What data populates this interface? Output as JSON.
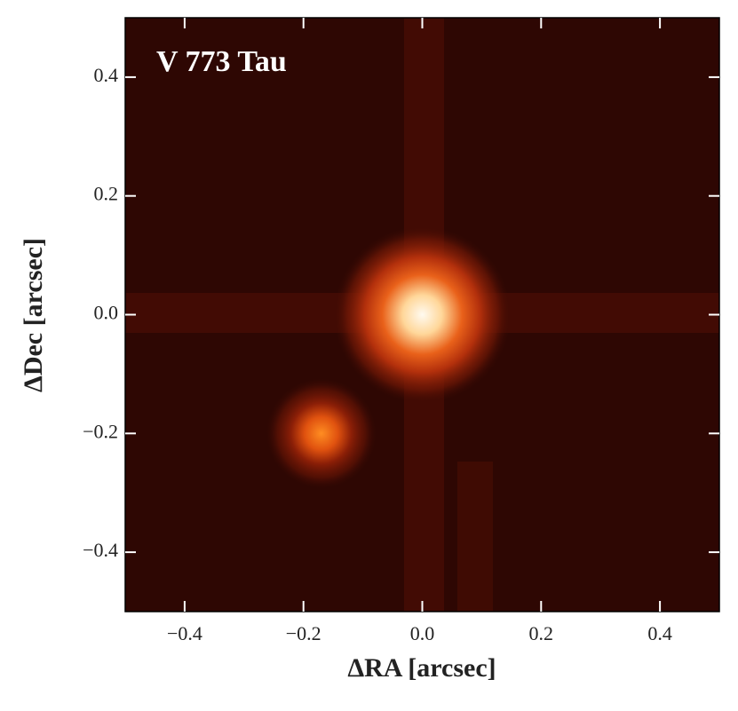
{
  "chart_data": {
    "type": "image",
    "title": "V 773 Tau",
    "xlabel": "ΔRA [arcsec]",
    "ylabel": "ΔDec [arcsec]",
    "xlim": [
      -0.5,
      0.5
    ],
    "ylim": [
      -0.5,
      0.5
    ],
    "xticks": [
      {
        "value": -0.4,
        "label": "−0.4"
      },
      {
        "value": -0.2,
        "label": "−0.2"
      },
      {
        "value": 0,
        "label": "0.0"
      },
      0.2,
      0.4
    ],
    "yticks": [
      {
        "value": -0.4,
        "label": "−0.4"
      },
      {
        "value": -0.2,
        "label": "−0.2"
      },
      {
        "value": 0,
        "label": "0.0"
      },
      0.2,
      0.4
    ],
    "sources": {
      "x": [
        0,
        -0.17
      ],
      "y": [
        0,
        -0.2
      ]
    }
  }
}
